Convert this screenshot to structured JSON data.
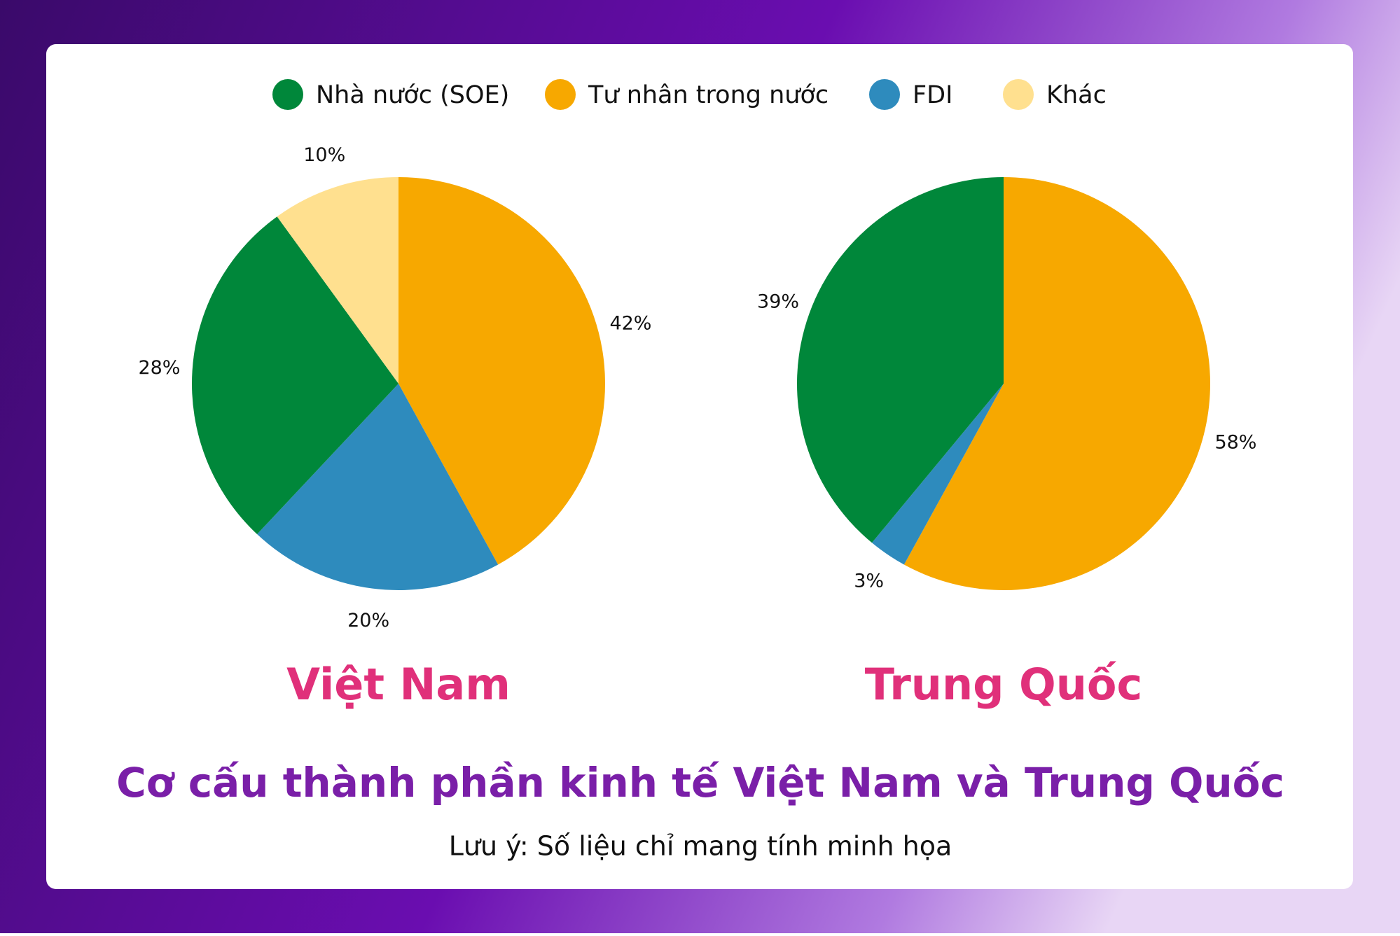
{
  "title": "Cơ cấu thành phần kinh tế Việt Nam và Trung Quốc",
  "note": "Lưu ý: Số liệu chỉ mang tính minh họa",
  "legend": [
    {
      "name": "Nhà nước (SOE)",
      "color": "#00873a"
    },
    {
      "name": "Tư nhân trong nước",
      "color": "#f7a800"
    },
    {
      "name": "FDI",
      "color": "#2e8bbd"
    },
    {
      "name": "Khác",
      "color": "#ffe08f"
    }
  ],
  "chart_data": [
    {
      "type": "pie",
      "title": "Việt Nam",
      "values": [
        42,
        20,
        28,
        10
      ],
      "value_labels": [
        "42%",
        "20%",
        "28%",
        "10%"
      ],
      "colors": [
        "#f7a800",
        "#2e8bbd",
        "#00873a",
        "#ffe08f"
      ]
    },
    {
      "type": "pie",
      "title": "Trung Quốc",
      "values": [
        58,
        3,
        39
      ],
      "value_labels": [
        "58%",
        "3%",
        "39%"
      ],
      "colors": [
        "#f7a800",
        "#2e8bbd",
        "#00873a"
      ]
    }
  ]
}
